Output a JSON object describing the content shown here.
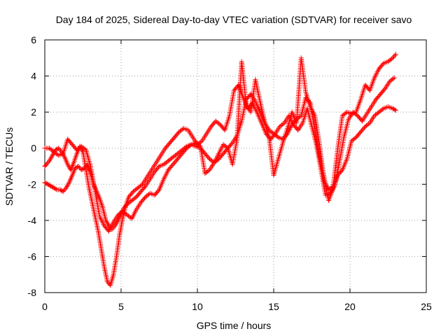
{
  "chart_data": {
    "type": "scatter",
    "title": "Day 184 of 2025, Sidereal Day-to-day VTEC variation (SDTVAR) for receiver savo",
    "xlabel": "GPS time / hours",
    "ylabel": "SDTVAR / TECUs",
    "xlim": [
      0,
      25
    ],
    "ylim": [
      -8,
      6
    ],
    "xticks": [
      "0",
      "5",
      "10",
      "15",
      "20",
      "25"
    ],
    "yticks": [
      "-8",
      "-6",
      "-4",
      "-2",
      "0",
      "2",
      "4",
      "6"
    ],
    "grid": true,
    "marker": "+",
    "color": "#ff0000",
    "series": [
      {
        "x": [
          0.0,
          0.1,
          0.3,
          0.5,
          0.7,
          0.9,
          1.1,
          1.3,
          1.5,
          1.7,
          1.9,
          2.1,
          2.3,
          2.5,
          2.7,
          2.9,
          3.1,
          3.3,
          3.5,
          3.7,
          3.9,
          4.1,
          4.3,
          4.5,
          4.7,
          4.9,
          5.1,
          5.3,
          5.5,
          5.8,
          6.1,
          6.4,
          6.7,
          7.0,
          7.3,
          7.6,
          7.9,
          8.2,
          8.5,
          8.8,
          9.1,
          9.4,
          9.7,
          10.0,
          10.3,
          10.6,
          10.9,
          11.2,
          11.5,
          11.8,
          12.1,
          12.4,
          12.7,
          13.0,
          13.3,
          13.6,
          13.9,
          14.2,
          14.5,
          14.8,
          15.1,
          15.4,
          15.7,
          16.0,
          16.3,
          16.6,
          16.9,
          17.2,
          17.5,
          17.8,
          18.1,
          18.4,
          18.7,
          19.0,
          19.3,
          19.6,
          19.9,
          20.2,
          20.5,
          20.8,
          21.1,
          21.4,
          21.7,
          22.0,
          22.3,
          22.6,
          22.9
        ],
        "y": [
          -1.0,
          -0.9,
          -0.7,
          -0.4,
          -0.1,
          0.0,
          -0.2,
          -0.5,
          -0.9,
          -1.2,
          -0.8,
          -0.3,
          0.1,
          -0.2,
          -1.2,
          -2.2,
          -3.0,
          -3.8,
          -4.6,
          -5.6,
          -6.6,
          -7.4,
          -7.6,
          -7.0,
          -6.0,
          -4.8,
          -3.9,
          -3.2,
          -2.7,
          -2.4,
          -2.2,
          -2.0,
          -1.6,
          -1.2,
          -0.8,
          -0.4,
          0.0,
          0.3,
          0.6,
          0.9,
          1.1,
          1.0,
          0.6,
          0.2,
          0.4,
          0.8,
          1.2,
          1.5,
          1.3,
          1.0,
          1.8,
          3.2,
          3.5,
          2.8,
          2.2,
          2.5,
          2.0,
          1.4,
          0.8,
          0.5,
          0.8,
          1.2,
          1.4,
          1.8,
          1.3,
          1.0,
          1.4,
          2.2,
          1.2,
          0.2,
          -1.2,
          -2.6,
          -2.5,
          -2.1,
          -0.8,
          0.6,
          1.6,
          2.0,
          1.8,
          1.5,
          1.9,
          2.3,
          2.7,
          3.0,
          3.3,
          3.7,
          3.9
        ]
      },
      {
        "x": [
          0.0,
          0.2,
          0.4,
          0.6,
          0.8,
          1.0,
          1.2,
          1.4,
          1.6,
          1.8,
          2.0,
          2.2,
          2.4,
          2.6,
          2.8,
          3.0,
          3.2,
          3.4,
          3.6,
          3.8,
          4.0,
          4.2,
          4.4,
          4.6,
          4.8,
          5.0,
          5.2,
          5.4,
          5.7,
          6.0,
          6.3,
          6.6,
          6.9,
          7.2,
          7.5,
          7.8,
          8.1,
          8.4,
          8.7,
          9.0,
          9.3,
          9.6,
          9.9,
          10.2,
          10.5,
          10.8,
          11.1,
          11.4,
          11.7,
          12.0,
          12.3,
          12.6,
          12.9,
          13.2,
          13.5,
          13.8,
          14.1,
          14.4,
          14.7,
          15.0,
          15.3,
          15.6,
          15.9,
          16.2,
          16.5,
          16.8,
          17.1,
          17.4,
          17.7,
          18.0,
          18.3,
          18.6,
          18.9,
          19.2,
          19.5,
          19.8,
          20.1,
          20.4,
          20.7,
          21.0,
          21.3,
          21.6,
          21.9,
          22.2,
          22.5,
          22.8,
          23.0
        ],
        "y": [
          -1.9,
          -2.0,
          -2.1,
          -2.2,
          -2.3,
          -2.3,
          -2.4,
          -2.2,
          -1.9,
          -1.5,
          -1.1,
          -1.0,
          -1.2,
          -1.1,
          -0.9,
          -1.4,
          -2.0,
          -2.4,
          -2.8,
          -3.3,
          -4.0,
          -4.3,
          -4.5,
          -4.3,
          -4.0,
          -3.6,
          -3.3,
          -3.1,
          -2.9,
          -2.7,
          -2.4,
          -2.1,
          -1.7,
          -1.3,
          -1.0,
          -0.9,
          -0.7,
          -0.5,
          -0.3,
          -0.1,
          0.1,
          0.2,
          0.1,
          0.0,
          -0.3,
          -0.6,
          -0.8,
          -0.6,
          -0.3,
          0.0,
          0.3,
          0.7,
          1.5,
          2.7,
          3.0,
          2.6,
          2.0,
          1.4,
          1.0,
          0.8,
          0.6,
          0.5,
          0.8,
          1.3,
          1.6,
          1.8,
          2.8,
          2.5,
          1.0,
          -0.4,
          -1.6,
          -2.9,
          -2.2,
          -1.5,
          -1.2,
          -0.6,
          0.4,
          0.6,
          0.9,
          1.2,
          1.4,
          1.8,
          2.0,
          2.2,
          2.3,
          2.2,
          2.1
        ]
      },
      {
        "x": [
          0.0,
          0.3,
          0.6,
          0.9,
          1.2,
          1.5,
          1.8,
          2.1,
          2.4,
          2.7,
          3.0,
          3.3,
          3.6,
          3.9,
          4.2,
          4.5,
          4.8,
          5.1,
          5.4,
          5.7,
          6.0,
          6.3,
          6.6,
          6.9,
          7.2,
          7.5,
          7.8,
          8.1,
          8.4,
          8.7,
          9.0,
          9.3,
          9.6,
          9.9,
          10.2,
          10.5,
          10.8,
          11.1,
          11.4,
          11.7,
          12.0,
          12.3,
          12.6,
          12.9,
          13.2,
          13.5,
          13.8,
          14.1,
          14.4,
          14.7,
          15.0,
          15.3,
          15.6,
          15.9,
          16.2,
          16.5,
          16.8,
          17.1,
          17.4,
          17.7,
          18.0,
          18.3,
          18.6,
          18.9,
          19.2,
          19.5,
          19.8,
          20.1,
          20.4,
          20.7,
          21.0,
          21.3,
          21.6,
          21.9,
          22.2,
          22.5,
          22.8,
          23.0
        ],
        "y": [
          0.0,
          0.0,
          -0.2,
          -0.4,
          -0.3,
          0.5,
          0.2,
          -0.1,
          0.1,
          -0.1,
          -1.0,
          -2.4,
          -3.8,
          -4.3,
          -4.6,
          -4.1,
          -3.7,
          -3.5,
          -3.7,
          -3.9,
          -3.4,
          -3.0,
          -2.7,
          -2.5,
          -2.6,
          -2.3,
          -1.7,
          -1.2,
          -0.9,
          -0.6,
          -0.3,
          0.0,
          0.2,
          0.3,
          0.1,
          -1.4,
          -1.2,
          -0.8,
          -0.3,
          0.2,
          0.0,
          -0.9,
          0.5,
          4.8,
          2.4,
          2.0,
          3.8,
          2.6,
          1.5,
          0.6,
          -1.5,
          -0.6,
          0.3,
          1.1,
          2.0,
          1.4,
          5.0,
          3.1,
          2.3,
          1.8,
          0.2,
          -1.8,
          -2.3,
          -2.1,
          0.0,
          1.8,
          2.0,
          1.9,
          2.0,
          2.7,
          3.5,
          3.2,
          3.9,
          4.4,
          4.7,
          4.8,
          5.0,
          5.2
        ]
      }
    ]
  }
}
